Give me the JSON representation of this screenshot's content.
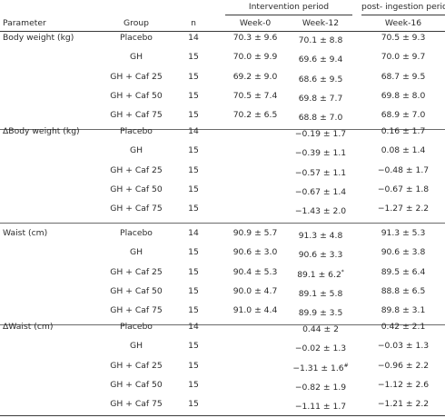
{
  "headers": {
    "intervention_period": "Intervention period",
    "post_period": "post- ingestion period",
    "parameter": "Parameter",
    "group": "Group",
    "n": "n",
    "week0": "Week-0",
    "week12": "Week-12",
    "week16": "Week-16"
  },
  "sections": [
    {
      "title": "Body weight (kg)",
      "rows": [
        {
          "group": "Placebo",
          "n": "14",
          "w0": "70.3 ± 9.6",
          "w12": "70.1 ± 8.8",
          "w12_mark": "",
          "w16": "70.5 ± 9.3"
        },
        {
          "group": "GH",
          "n": "15",
          "w0": "70.0 ± 9.9",
          "w12": "69.6 ± 9.4",
          "w12_mark": "",
          "w16": "70.0 ± 9.7"
        },
        {
          "group": "GH + Caf 25",
          "n": "15",
          "w0": "69.2 ± 9.0",
          "w12": "68.6 ± 9.5",
          "w12_mark": "",
          "w16": "68.7 ± 9.5"
        },
        {
          "group": "GH + Caf 50",
          "n": "15",
          "w0": "70.5 ± 7.4",
          "w12": "69.8 ± 7.7",
          "w12_mark": "",
          "w16": "69.8 ± 8.0"
        },
        {
          "group": "GH + Caf 75",
          "n": "15",
          "w0": "70.2 ± 6.5",
          "w12": "68.8 ± 7.0",
          "w12_mark": "",
          "w16": "68.9 ± 7.0"
        }
      ]
    },
    {
      "title": "ΔBody weight (kg)",
      "rows": [
        {
          "group": "Placebo",
          "n": "14",
          "w0": "",
          "w12": "−0.19 ± 1.7",
          "w12_mark": "",
          "w16": "0.16 ± 1.7"
        },
        {
          "group": "GH",
          "n": "15",
          "w0": "",
          "w12": "−0.39 ± 1.1",
          "w12_mark": "",
          "w16": "0.08 ± 1.4"
        },
        {
          "group": "GH + Caf 25",
          "n": "15",
          "w0": "",
          "w12": "−0.57 ± 1.1",
          "w12_mark": "",
          "w16": "−0.48 ± 1.7"
        },
        {
          "group": "GH + Caf 50",
          "n": "15",
          "w0": "",
          "w12": "−0.67 ± 1.4",
          "w12_mark": "",
          "w16": "−0.67 ± 1.8"
        },
        {
          "group": "GH + Caf 75",
          "n": "15",
          "w0": "",
          "w12": "−1.43 ± 2.0",
          "w12_mark": "",
          "w16": "−1.27 ± 2.2"
        }
      ]
    },
    {
      "title": "Waist (cm)",
      "rows": [
        {
          "group": "Placebo",
          "n": "14",
          "w0": "90.9 ± 5.7",
          "w12": "91.3 ± 4.8",
          "w12_mark": "",
          "w16": "91.3 ± 5.3"
        },
        {
          "group": "GH",
          "n": "15",
          "w0": "90.6 ± 3.0",
          "w12": "90.6 ± 3.3",
          "w12_mark": "",
          "w16": "90.6 ± 3.8"
        },
        {
          "group": "GH + Caf 25",
          "n": "15",
          "w0": "90.4 ± 5.3",
          "w12": "89.1 ± 6.2",
          "w12_mark": "*",
          "w16": "89.5 ± 6.4"
        },
        {
          "group": "GH + Caf 50",
          "n": "15",
          "w0": "90.0 ± 4.7",
          "w12": "89.1 ± 5.8",
          "w12_mark": "",
          "w16": "88.8 ± 6.5"
        },
        {
          "group": "GH + Caf 75",
          "n": "15",
          "w0": "91.0 ± 4.4",
          "w12": "89.9 ± 3.5",
          "w12_mark": "",
          "w16": "89.8 ± 3.1"
        }
      ]
    },
    {
      "title": "ΔWaist (cm)",
      "rows": [
        {
          "group": "Placebo",
          "n": "14",
          "w0": "",
          "w12": "0.44 ± 2",
          "w12_mark": "",
          "w16": "0.42 ± 2.1"
        },
        {
          "group": "GH",
          "n": "15",
          "w0": "",
          "w12": "−0.02 ± 1.3",
          "w12_mark": "",
          "w16": "−0.03 ± 1.3"
        },
        {
          "group": "GH + Caf 25",
          "n": "15",
          "w0": "",
          "w12": "−1.31 ± 1.6",
          "w12_mark": "#",
          "w16": "−0.96 ± 2.2"
        },
        {
          "group": "GH + Caf 50",
          "n": "15",
          "w0": "",
          "w12": "−0.82 ± 1.9",
          "w12_mark": "",
          "w16": "−1.12 ± 2.6"
        },
        {
          "group": "GH + Caf 75",
          "n": "15",
          "w0": "",
          "w12": "−1.11 ± 1.7",
          "w12_mark": "",
          "w16": "−1.21 ± 2.2"
        }
      ]
    }
  ]
}
